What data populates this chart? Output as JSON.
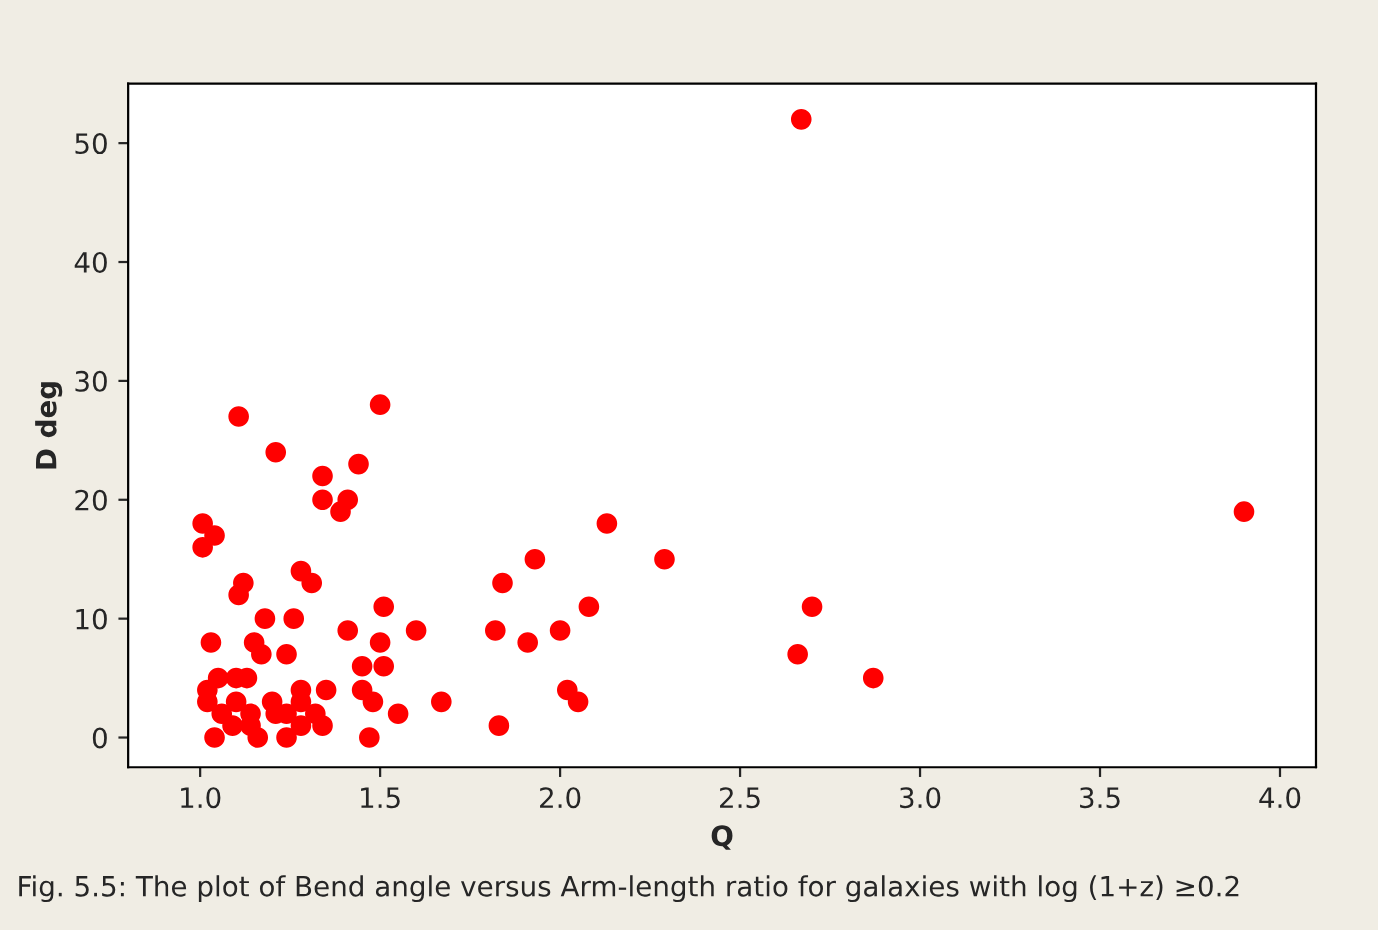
{
  "chart_data": {
    "type": "scatter",
    "xlabel": "Q",
    "ylabel": "D deg",
    "annotations": [
      "Fig. 5.5: The plot of Bend angle versus Arm-length ratio for galaxies with log (1+z) ≥0.2"
    ],
    "x": [
      1.107,
      1.5,
      1.21,
      1.34,
      1.44,
      1.34,
      1.41,
      1.39,
      1.007,
      1.04,
      1.007,
      1.12,
      1.107,
      1.28,
      1.31,
      1.18,
      1.26,
      1.51,
      1.03,
      1.15,
      1.17,
      1.24,
      1.41,
      1.5,
      1.6,
      1.45,
      1.51,
      1.05,
      1.1,
      1.13,
      1.02,
      1.02,
      1.1,
      1.28,
      1.35,
      1.45,
      1.2,
      1.28,
      1.48,
      1.67,
      1.06,
      1.14,
      1.21,
      1.24,
      1.32,
      1.55,
      1.09,
      1.14,
      1.28,
      1.34,
      1.04,
      1.16,
      1.24,
      1.47,
      2.13,
      1.93,
      2.29,
      1.84,
      2.08,
      1.82,
      1.91,
      2.0,
      2.02,
      2.05,
      1.83,
      2.7,
      2.66,
      2.87,
      2.67,
      3.9
    ],
    "values": [
      27,
      28,
      24,
      22,
      23,
      20,
      20,
      19,
      18,
      17,
      16,
      13,
      12,
      14,
      13,
      10,
      10,
      11,
      8,
      8,
      7,
      7,
      9,
      8,
      9,
      6,
      6,
      5,
      5,
      5,
      4,
      3,
      3,
      4,
      4,
      4,
      3,
      3,
      3,
      3,
      2,
      2,
      2,
      2,
      2,
      2,
      1,
      1,
      1,
      1,
      0,
      0,
      0,
      0,
      18,
      15,
      15,
      13,
      11,
      9,
      8,
      9,
      4,
      3,
      1,
      11,
      7,
      5,
      52,
      19
    ],
    "color": "#ff0000",
    "marker": "circle",
    "xlim": [
      0.8,
      4.1
    ],
    "ylim": [
      -2.5,
      55
    ],
    "xticks": [
      {
        "value": 1,
        "label": "1.0"
      },
      1.5,
      {
        "value": 2,
        "label": "2.0"
      },
      2.5,
      {
        "value": 3,
        "label": "3.0"
      },
      3.5,
      {
        "value": 4,
        "label": "4.0"
      }
    ],
    "yticks": [
      0,
      10,
      20,
      30,
      40,
      50
    ],
    "grid": false
  }
}
